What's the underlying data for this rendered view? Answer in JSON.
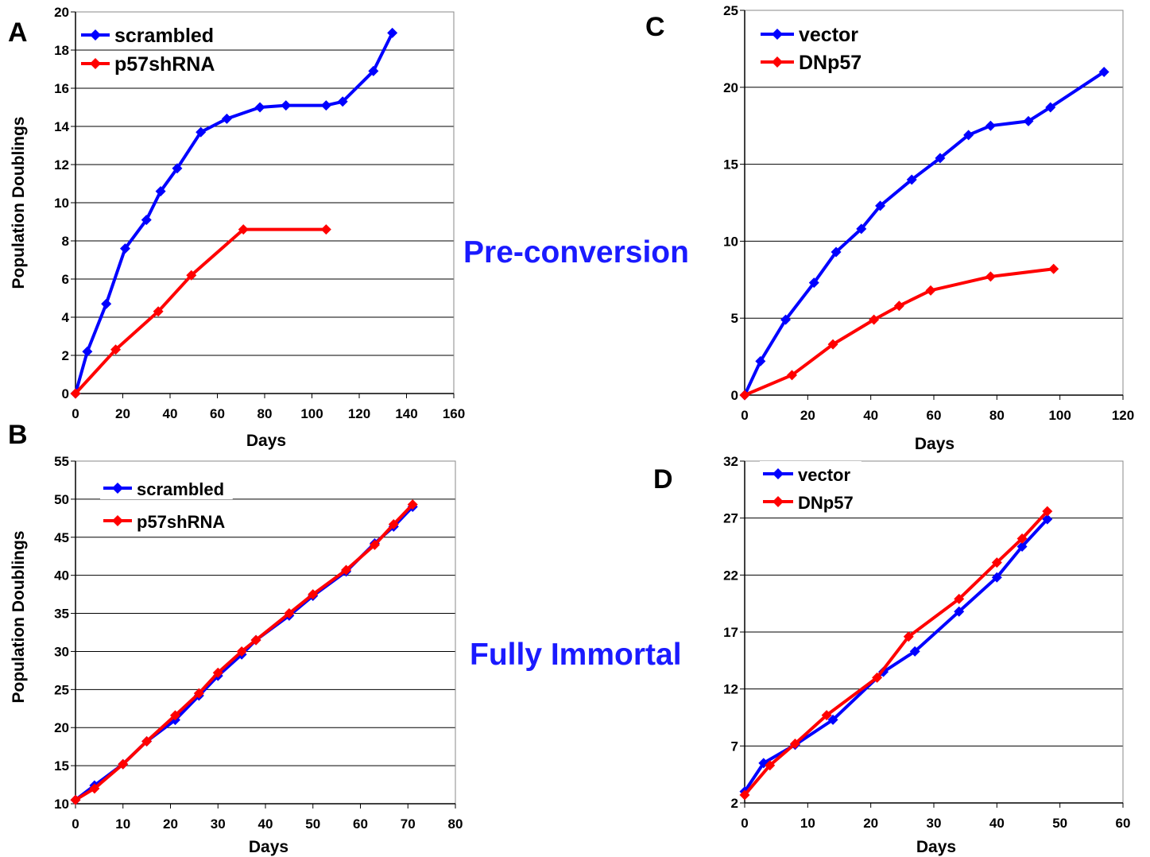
{
  "figure": {
    "center_labels": [
      "Pre-conversion",
      "Fully Immortal"
    ],
    "center_label_color": "#1a1aff"
  },
  "chart_data": [
    {
      "panel": "A",
      "type": "line",
      "title": "",
      "xlabel": "Days",
      "ylabel": "Population Doublings",
      "xlim": [
        0,
        160
      ],
      "ylim": [
        0,
        20
      ],
      "x_ticks": [
        0,
        20,
        40,
        60,
        80,
        100,
        120,
        140,
        160
      ],
      "y_ticks": [
        0,
        2,
        4,
        6,
        8,
        10,
        12,
        14,
        16,
        18,
        20
      ],
      "grid": "horizontal",
      "legend": "top-left",
      "series": [
        {
          "name": "scrambled",
          "color": "#0000ff",
          "x": [
            0,
            5,
            13,
            21,
            30,
            36,
            43,
            53,
            64,
            78,
            89,
            106,
            113,
            126,
            134
          ],
          "y": [
            0,
            2.2,
            4.7,
            7.6,
            9.1,
            10.6,
            11.8,
            13.7,
            14.4,
            15.0,
            15.1,
            15.1,
            15.3,
            16.9,
            18.9
          ]
        },
        {
          "name": "p57shRNA",
          "color": "#ff0000",
          "x": [
            0,
            17,
            35,
            49,
            71,
            106
          ],
          "y": [
            0,
            2.3,
            4.3,
            6.2,
            8.6,
            8.6
          ]
        }
      ]
    },
    {
      "panel": "C",
      "type": "line",
      "title": "",
      "xlabel": "Days",
      "ylabel": "",
      "xlim": [
        0,
        120
      ],
      "ylim": [
        0,
        25
      ],
      "x_ticks": [
        0,
        20,
        40,
        60,
        80,
        100,
        120
      ],
      "y_ticks": [
        0,
        5,
        10,
        15,
        20,
        25
      ],
      "grid": "horizontal",
      "legend": "top-left",
      "series": [
        {
          "name": "vector",
          "color": "#0000ff",
          "x": [
            0,
            5,
            13,
            22,
            29,
            37,
            43,
            53,
            62,
            71,
            78,
            90,
            97,
            114
          ],
          "y": [
            0,
            2.2,
            4.9,
            7.3,
            9.3,
            10.8,
            12.3,
            14.0,
            15.4,
            16.9,
            17.5,
            17.8,
            18.7,
            21.0
          ]
        },
        {
          "name": "DNp57",
          "color": "#ff0000",
          "x": [
            0,
            15,
            28,
            41,
            49,
            59,
            78,
            98
          ],
          "y": [
            0,
            1.3,
            3.3,
            4.9,
            5.8,
            6.8,
            7.7,
            8.2
          ]
        }
      ]
    },
    {
      "panel": "B",
      "type": "line",
      "title": "",
      "xlabel": "Days",
      "ylabel": "Population Doublings",
      "xlim": [
        0,
        80
      ],
      "ylim": [
        10,
        55
      ],
      "x_ticks": [
        0,
        10,
        20,
        30,
        40,
        50,
        60,
        70,
        80
      ],
      "y_ticks": [
        10,
        15,
        20,
        25,
        30,
        35,
        40,
        45,
        50,
        55
      ],
      "grid": "horizontal",
      "legend": "top-left",
      "series": [
        {
          "name": "scrambled",
          "color": "#0000ff",
          "x": [
            0,
            4,
            10,
            15,
            21,
            26,
            30,
            35,
            38,
            45,
            50,
            57,
            63,
            67,
            71
          ],
          "y": [
            10.5,
            12.4,
            15.2,
            18.2,
            21.0,
            24.2,
            26.8,
            29.6,
            31.5,
            34.7,
            37.3,
            40.5,
            44.2,
            46.4,
            49.0
          ]
        },
        {
          "name": "p57shRNA",
          "color": "#ff0000",
          "x": [
            0,
            4,
            10,
            15,
            21,
            26,
            30,
            35,
            38,
            45,
            50,
            57,
            63,
            67,
            71
          ],
          "y": [
            10.5,
            12.0,
            15.2,
            18.2,
            21.6,
            24.5,
            27.2,
            30.0,
            31.5,
            35.0,
            37.5,
            40.7,
            44.0,
            46.7,
            49.3
          ]
        }
      ]
    },
    {
      "panel": "D",
      "type": "line",
      "title": "",
      "xlabel": "Days",
      "ylabel": "",
      "xlim": [
        0,
        60
      ],
      "ylim": [
        2,
        32
      ],
      "x_ticks": [
        0,
        10,
        20,
        30,
        40,
        50,
        60
      ],
      "y_ticks": [
        2,
        7,
        12,
        17,
        22,
        27,
        32
      ],
      "grid": "horizontal",
      "legend": "top-left",
      "series": [
        {
          "name": "vector",
          "color": "#0000ff",
          "x": [
            0,
            3,
            8,
            14,
            22,
            27,
            34,
            40,
            44,
            48
          ],
          "y": [
            3.0,
            5.5,
            7.1,
            9.3,
            13.5,
            15.3,
            18.8,
            21.8,
            24.5,
            26.9
          ]
        },
        {
          "name": "DNp57",
          "color": "#ff0000",
          "x": [
            0,
            4,
            8,
            13,
            21,
            26,
            34,
            40,
            44,
            48
          ],
          "y": [
            2.7,
            5.3,
            7.2,
            9.7,
            13.0,
            16.6,
            19.9,
            23.1,
            25.2,
            27.6
          ]
        }
      ]
    }
  ]
}
